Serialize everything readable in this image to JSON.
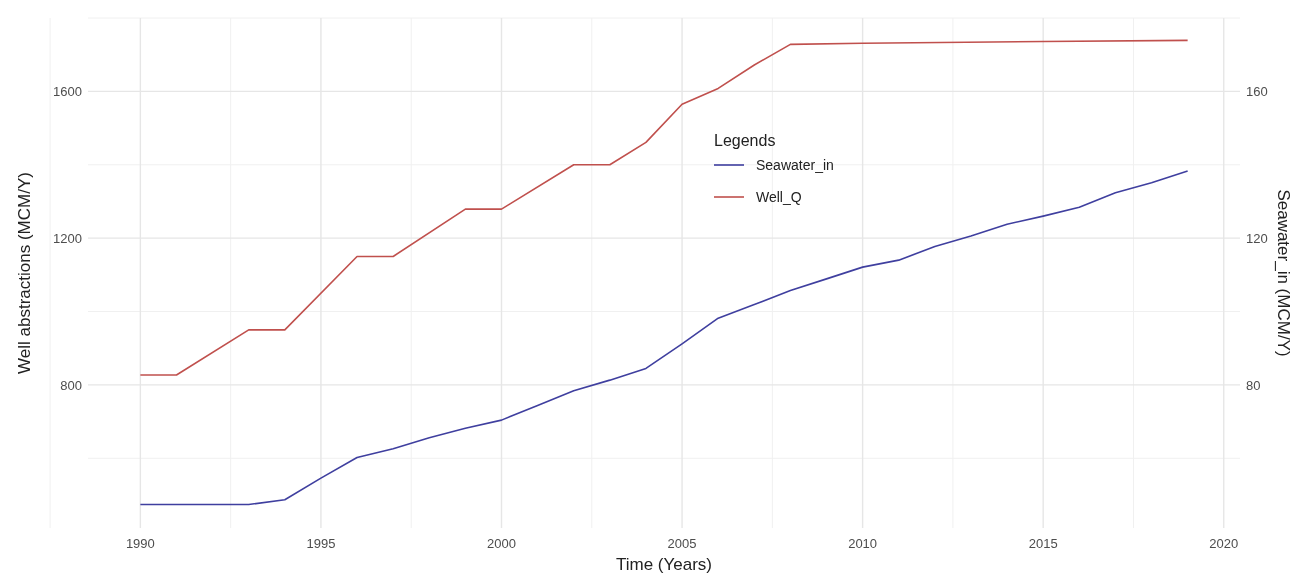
{
  "chart_data": {
    "type": "line",
    "xlabel": "Time (Years)",
    "ylabel": "Well abstractions (MCM/Y)",
    "y2label": "Seawater_in (MCM/Y)",
    "legend_title": "Legends",
    "legend": "top",
    "grid": true,
    "xlim": [
      1988.55,
      2020.45
    ],
    "xticks": [
      1990,
      1995,
      2000,
      2005,
      2010,
      2015,
      2020
    ],
    "ylim": [
      410,
      1800
    ],
    "yticks": [
      800,
      1200,
      1600
    ],
    "y2lim": [
      41,
      180
    ],
    "y2ticks": [
      80,
      120,
      160
    ],
    "series": [
      {
        "name": "Seawater_in",
        "color": "#3f3f9f",
        "axis": "y2",
        "x": [
          1990,
          1991,
          1992,
          1993,
          1994,
          1995,
          1996,
          1997,
          1998,
          1999,
          2000,
          2001,
          2002,
          2003,
          2004,
          2005,
          2006,
          2007,
          2008,
          2009,
          2010,
          2011,
          2012,
          2013,
          2014,
          2015,
          2016,
          2017,
          2018,
          2019
        ],
        "values": [
          47.4,
          47.4,
          47.4,
          47.4,
          48.7,
          54.6,
          60.2,
          62.6,
          65.6,
          68.2,
          70.4,
          74.4,
          78.4,
          81.3,
          84.5,
          91.2,
          98.2,
          101.9,
          105.7,
          108.9,
          112.1,
          114,
          117.7,
          120.6,
          123.8,
          126,
          128.4,
          132.4,
          135.1,
          138.3
        ]
      },
      {
        "name": "Well_Q",
        "color": "#c0504d",
        "x": [
          1990,
          1991,
          1993,
          1994,
          1996,
          1997,
          1999,
          2000,
          2002,
          2003,
          2004,
          2005,
          2006,
          2007,
          2008,
          2010,
          2015,
          2019
        ],
        "values": [
          827,
          827,
          950,
          950,
          1150,
          1150,
          1279,
          1279,
          1400,
          1400,
          1461,
          1565,
          1608,
          1672,
          1728,
          1731,
          1736,
          1739
        ]
      }
    ]
  }
}
